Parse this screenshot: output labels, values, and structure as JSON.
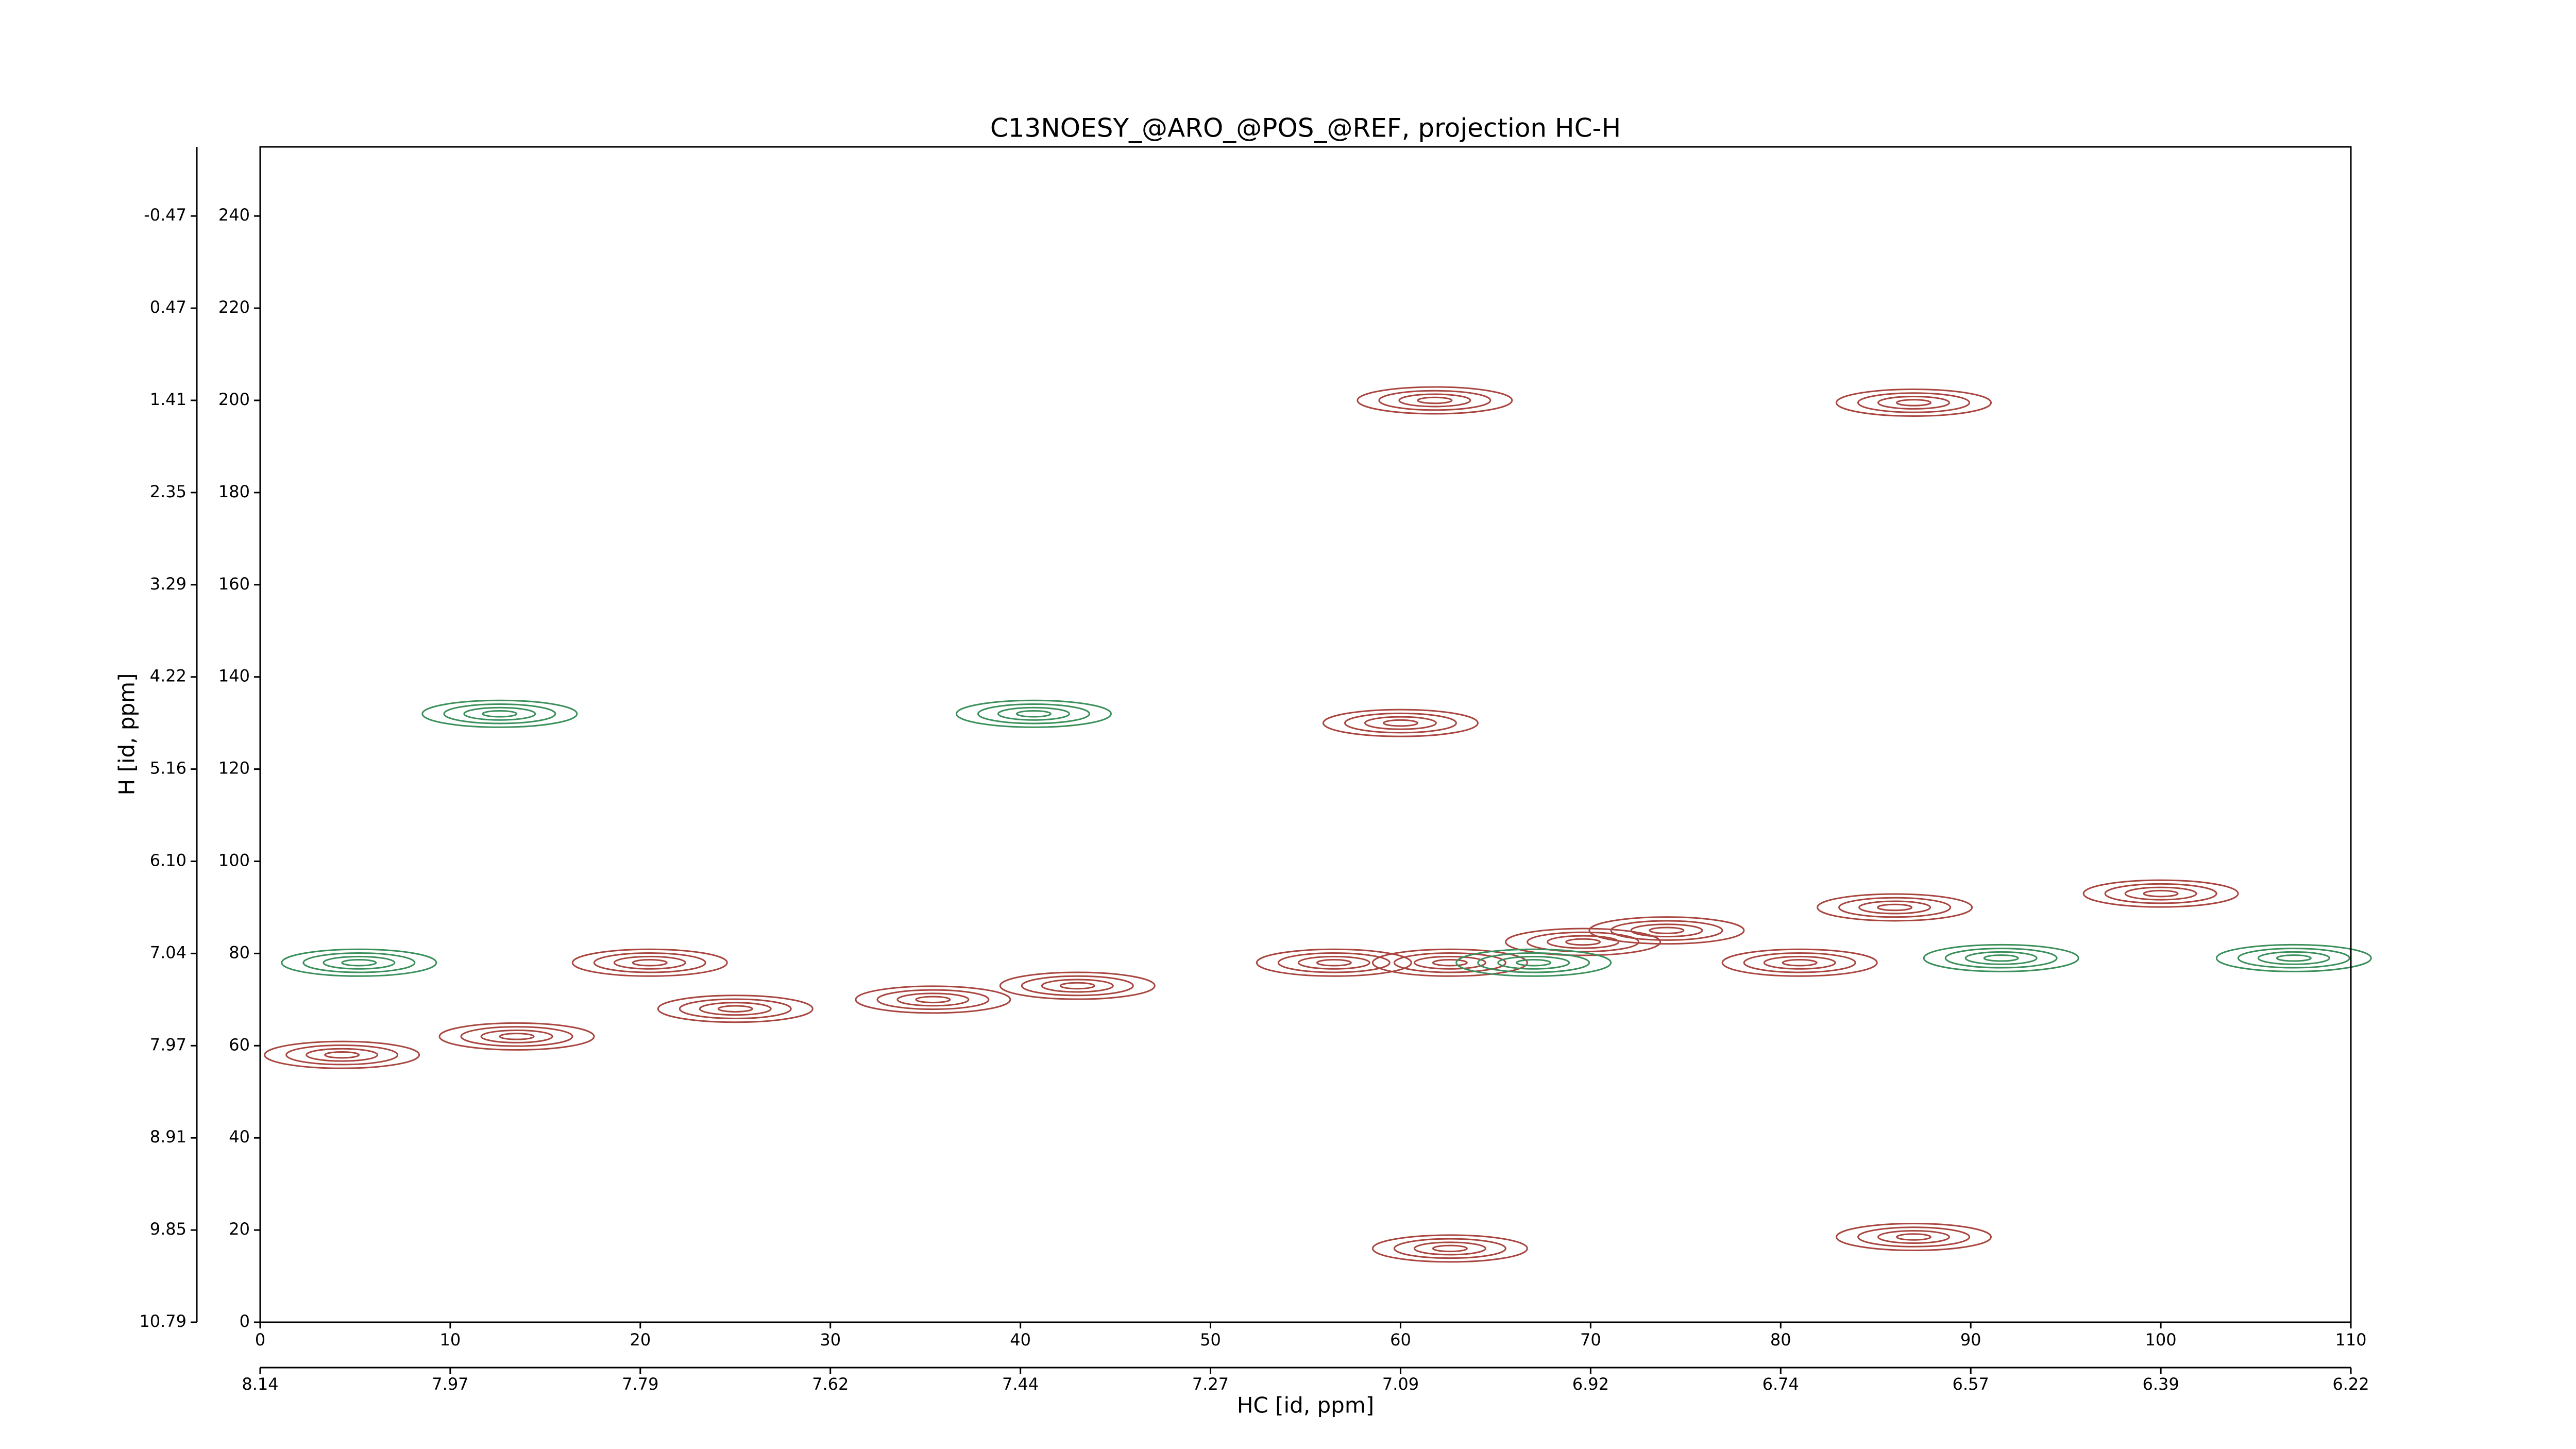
{
  "chart_data": {
    "type": "contour",
    "title": "C13NOESY_@ARO_@POS_@REF, projection HC-H",
    "x_label": "HC [id, ppm]",
    "y_label": "H [id, ppm]",
    "xlim": [
      0,
      110
    ],
    "xticks": [
      0,
      10,
      20,
      30,
      40,
      50,
      60,
      70,
      80,
      90,
      100,
      110
    ],
    "ylim": [
      0,
      255
    ],
    "yticks": [
      0,
      20,
      40,
      60,
      80,
      100,
      120,
      140,
      160,
      180,
      200,
      220,
      240
    ],
    "x2lim": [
      0,
      110
    ],
    "x2ticks": [
      {
        "value": 0,
        "label": "8.14"
      },
      {
        "value": 10,
        "label": "7.97"
      },
      {
        "value": 20,
        "label": "7.79"
      },
      {
        "value": 30,
        "label": "7.62"
      },
      {
        "value": 40,
        "label": "7.44"
      },
      {
        "value": 50,
        "label": "7.27"
      },
      {
        "value": 60,
        "label": "7.09"
      },
      {
        "value": 70,
        "label": "6.92"
      },
      {
        "value": 80,
        "label": "6.74"
      },
      {
        "value": 90,
        "label": "6.57"
      },
      {
        "value": 100,
        "label": "6.39"
      },
      {
        "value": 110,
        "label": "6.22"
      }
    ],
    "y2lim": [
      0,
      255
    ],
    "y2ticks": [
      {
        "value": 0,
        "label": "10.79"
      },
      {
        "value": 20,
        "label": "9.85"
      },
      {
        "value": 40,
        "label": "8.91"
      },
      {
        "value": 60,
        "label": "7.97"
      },
      {
        "value": 80,
        "label": "7.04"
      },
      {
        "value": 100,
        "label": "6.10"
      },
      {
        "value": 120,
        "label": "5.16"
      },
      {
        "value": 140,
        "label": "4.22"
      },
      {
        "value": 160,
        "label": "3.29"
      },
      {
        "value": 180,
        "label": "2.35"
      },
      {
        "value": 200,
        "label": "1.41"
      },
      {
        "value": 220,
        "label": "0.47"
      },
      {
        "value": 240,
        "label": "-0.47"
      }
    ],
    "series": [
      {
        "color": "#a8453f",
        "x": [
          13.5,
          25,
          35.4,
          43,
          56.5,
          62.6,
          69.6,
          81,
          86,
          100,
          61.8,
          87,
          60,
          62.6,
          87,
          20.5,
          74,
          4.3
        ],
        "y": [
          62,
          68,
          70,
          73,
          78,
          78,
          82.5,
          78,
          90,
          93,
          200,
          199.5,
          130,
          16,
          18.5,
          78,
          85,
          58
        ]
      },
      {
        "color": "#3a8f5a",
        "x": [
          12.6,
          40.7,
          67,
          91.6,
          107,
          5.2
        ],
        "y": [
          132,
          132,
          78,
          79,
          79,
          78
        ]
      }
    ]
  }
}
